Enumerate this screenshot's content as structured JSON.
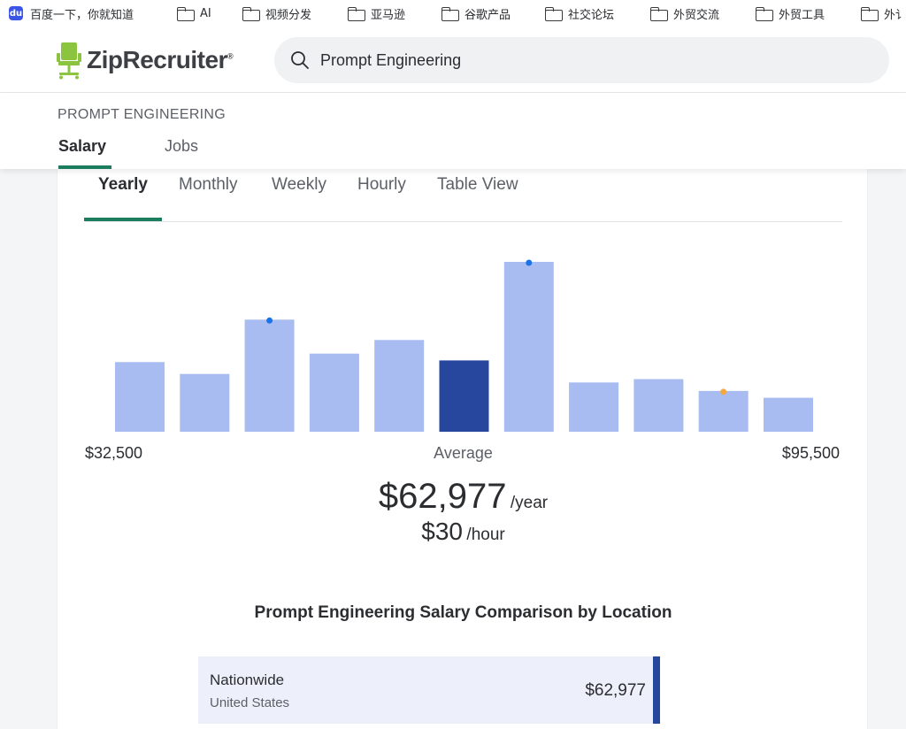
{
  "bookmarks": [
    {
      "label": "百度一下，你就知道",
      "icon": "baidu-icon"
    },
    {
      "label": "AI",
      "icon": "folder-icon"
    },
    {
      "label": "视频分发",
      "icon": "folder-icon"
    },
    {
      "label": "亚马逊",
      "icon": "folder-icon"
    },
    {
      "label": "谷歌产品",
      "icon": "folder-icon"
    },
    {
      "label": "社交论坛",
      "icon": "folder-icon"
    },
    {
      "label": "外贸交流",
      "icon": "folder-icon"
    },
    {
      "label": "外贸工具",
      "icon": "folder-icon"
    },
    {
      "label": "外讠",
      "icon": "folder-icon"
    }
  ],
  "header": {
    "logo_text": "ZipRecruiter",
    "logo_reg": "®",
    "search_value": "Prompt Engineering"
  },
  "subheader": {
    "breadcrumb": "PROMPT ENGINEERING",
    "tabs": [
      {
        "label": "Salary",
        "active": true
      },
      {
        "label": "Jobs",
        "active": false
      }
    ]
  },
  "period_tabs": [
    {
      "label": "Yearly",
      "active": true
    },
    {
      "label": "Monthly",
      "active": false
    },
    {
      "label": "Weekly",
      "active": false
    },
    {
      "label": "Hourly",
      "active": false
    },
    {
      "label": "Table View",
      "active": false
    }
  ],
  "chart_data": {
    "type": "bar",
    "bars": [
      0.41,
      0.34,
      0.66,
      0.46,
      0.54,
      0.42,
      1.0,
      0.29,
      0.31,
      0.24,
      0.2
    ],
    "highlight_index": 5,
    "markers": [
      {
        "index": 2,
        "color": "#1a73e8"
      },
      {
        "index": 6,
        "color": "#1a73e8"
      },
      {
        "index": 9,
        "color": "#f5a742"
      }
    ],
    "bar_color": "#a9bcf1",
    "highlight_color": "#27479f",
    "min_label": "$32,500",
    "max_label": "$95,500",
    "average_label": "Average"
  },
  "salary": {
    "yearly_value": "$62,977",
    "yearly_unit": "/year",
    "hourly_value": "$30",
    "hourly_unit": "/hour"
  },
  "comparison": {
    "title": "Prompt Engineering Salary Comparison by Location",
    "rows": [
      {
        "name": "Nationwide",
        "sub": "United States",
        "value": "$62,977"
      }
    ]
  },
  "colors": {
    "accent_green": "#1c7c5e",
    "logo_green": "#8bc53f"
  }
}
